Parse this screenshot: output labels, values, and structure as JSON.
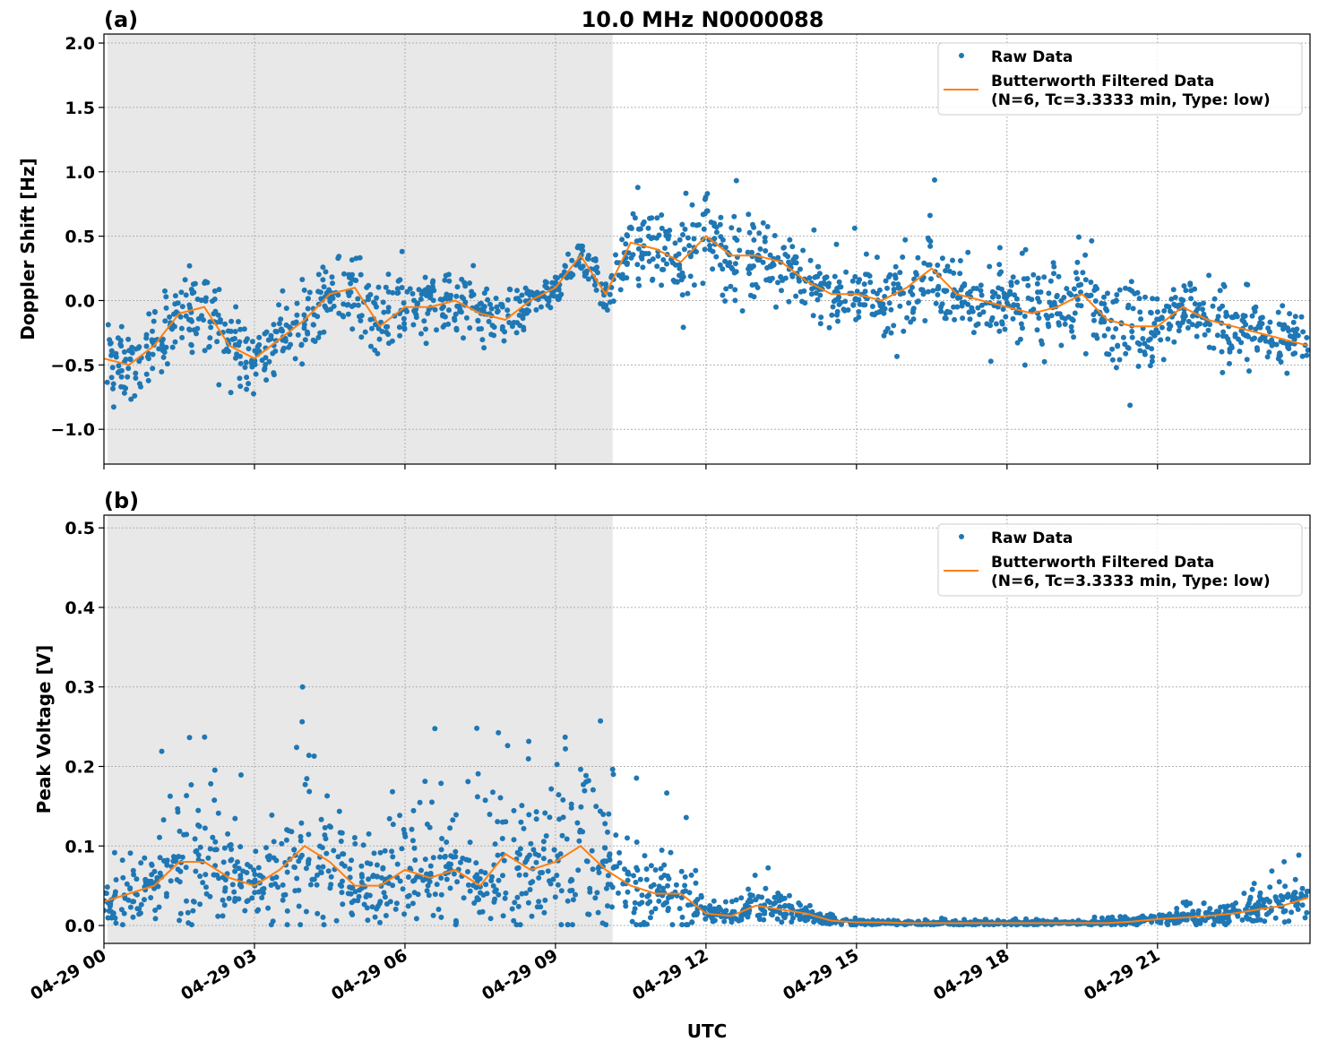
{
  "title": "10.0 MHz N0000088",
  "xlabel": "UTC",
  "x_tick_labels": [
    "04-29 00",
    "04-29 03",
    "04-29 06",
    "04-29 09",
    "04-29 12",
    "04-29 15",
    "04-29 18",
    "04-29 21"
  ],
  "x_ticks_hours": [
    0,
    3,
    6,
    9,
    12,
    15,
    18,
    21
  ],
  "colors": {
    "raw": "#1f77b4",
    "filtered": "#ff7f0e",
    "shade": "#e8e8e8"
  },
  "chart_data": [
    {
      "type": "scatter+line",
      "panel_label": "(a)",
      "ylabel": "Doppler Shift [Hz]",
      "xlim_hours": [
        0,
        24.04
      ],
      "ylim": [
        -1.27,
        2.07
      ],
      "y_ticks": [
        2.0,
        1.5,
        1.0,
        0.5,
        0.0,
        -0.5,
        -1.0
      ],
      "y_tick_labels": [
        "2.0",
        "1.5",
        "1.0",
        "0.5",
        "0.0",
        "−0.5",
        "−1.0"
      ],
      "grid": true,
      "legend_placement": "upper-right",
      "legend": {
        "raw": "Raw Data",
        "filtered_line1": "Butterworth Filtered Data",
        "filtered_line2": "(N=6, Tc=3.3333 min, Type: low)"
      },
      "shaded_interval_hours": [
        0.07,
        10.14
      ],
      "x_hours": [
        0,
        0.5,
        1,
        1.5,
        2,
        2.5,
        3,
        3.5,
        4,
        4.5,
        5,
        5.5,
        6,
        6.5,
        7,
        7.5,
        8,
        8.5,
        9,
        9.5,
        10,
        10.5,
        11,
        11.5,
        12,
        12.5,
        13,
        13.5,
        14,
        14.5,
        15,
        15.5,
        16,
        16.5,
        17,
        17.5,
        18,
        18.5,
        19,
        19.5,
        20,
        20.5,
        21,
        21.5,
        22,
        22.5,
        23,
        23.5,
        24
      ],
      "filtered": [
        -0.45,
        -0.5,
        -0.35,
        -0.1,
        -0.05,
        -0.35,
        -0.45,
        -0.3,
        -0.15,
        0.05,
        0.1,
        -0.2,
        -0.05,
        -0.05,
        0.0,
        -0.1,
        -0.15,
        0.0,
        0.1,
        0.35,
        0.05,
        0.45,
        0.4,
        0.3,
        0.5,
        0.35,
        0.35,
        0.3,
        0.15,
        0.05,
        0.05,
        0.0,
        0.1,
        0.25,
        0.05,
        0.0,
        -0.05,
        -0.1,
        -0.05,
        0.05,
        -0.15,
        -0.2,
        -0.2,
        -0.05,
        -0.15,
        -0.2,
        -0.25,
        -0.3,
        -0.35
      ],
      "raw_spread": [
        0.3,
        0.3,
        0.3,
        0.35,
        0.3,
        0.35,
        0.35,
        0.3,
        0.35,
        0.35,
        0.3,
        0.3,
        0.35,
        0.3,
        0.3,
        0.3,
        0.25,
        0.15,
        0.15,
        0.15,
        0.15,
        0.3,
        0.35,
        0.4,
        0.45,
        0.4,
        0.35,
        0.3,
        0.25,
        0.25,
        0.25,
        0.3,
        0.4,
        0.4,
        0.3,
        0.35,
        0.35,
        0.35,
        0.4,
        0.4,
        0.35,
        0.35,
        0.3,
        0.25,
        0.25,
        0.25,
        0.25,
        0.25,
        0.25
      ]
    },
    {
      "type": "scatter+line",
      "panel_label": "(b)",
      "ylabel": "Peak Voltage [V]",
      "xlim_hours": [
        0,
        24.04
      ],
      "ylim": [
        -0.0225,
        0.516
      ],
      "y_ticks": [
        0.5,
        0.4,
        0.3,
        0.2,
        0.1,
        0.0
      ],
      "y_tick_labels": [
        "0.5",
        "0.4",
        "0.3",
        "0.2",
        "0.1",
        "0.0"
      ],
      "grid": true,
      "legend_placement": "upper-right",
      "legend": {
        "raw": "Raw Data",
        "filtered_line1": "Butterworth Filtered Data",
        "filtered_line2": "(N=6, Tc=3.3333 min, Type: low)"
      },
      "shaded_interval_hours": [
        0.07,
        10.14
      ],
      "x_hours": [
        0,
        0.5,
        1,
        1.5,
        2,
        2.5,
        3,
        3.5,
        4,
        4.5,
        5,
        5.5,
        6,
        6.5,
        7,
        7.5,
        8,
        8.5,
        9,
        9.5,
        10,
        10.5,
        11,
        11.5,
        12,
        12.5,
        13,
        13.5,
        14,
        14.5,
        15,
        15.5,
        16,
        16.5,
        17,
        17.5,
        18,
        18.5,
        19,
        19.5,
        20,
        20.5,
        21,
        21.5,
        22,
        22.5,
        23,
        23.5,
        24
      ],
      "filtered": [
        0.03,
        0.04,
        0.05,
        0.08,
        0.08,
        0.06,
        0.05,
        0.07,
        0.1,
        0.08,
        0.05,
        0.05,
        0.07,
        0.06,
        0.07,
        0.05,
        0.09,
        0.07,
        0.08,
        0.1,
        0.07,
        0.05,
        0.04,
        0.04,
        0.015,
        0.012,
        0.025,
        0.02,
        0.015,
        0.006,
        0.004,
        0.004,
        0.003,
        0.003,
        0.003,
        0.003,
        0.003,
        0.003,
        0.003,
        0.003,
        0.003,
        0.005,
        0.008,
        0.01,
        0.012,
        0.015,
        0.02,
        0.025,
        0.035
      ],
      "raw_spread": [
        0.03,
        0.04,
        0.05,
        0.09,
        0.08,
        0.06,
        0.05,
        0.08,
        0.12,
        0.1,
        0.05,
        0.05,
        0.08,
        0.07,
        0.08,
        0.06,
        0.1,
        0.08,
        0.1,
        0.12,
        0.08,
        0.05,
        0.04,
        0.06,
        0.012,
        0.01,
        0.025,
        0.02,
        0.015,
        0.005,
        0.004,
        0.004,
        0.003,
        0.003,
        0.003,
        0.003,
        0.003,
        0.003,
        0.003,
        0.003,
        0.003,
        0.005,
        0.007,
        0.01,
        0.012,
        0.015,
        0.02,
        0.025,
        0.03
      ]
    }
  ]
}
